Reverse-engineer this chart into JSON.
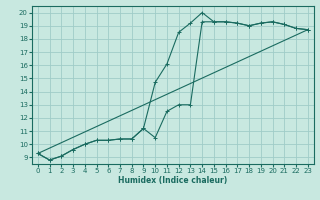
{
  "xlabel": "Humidex (Indice chaleur)",
  "background_color": "#c8e8e0",
  "grid_color": "#a0ccc8",
  "line_color": "#1a6b60",
  "xlim": [
    -0.5,
    23.5
  ],
  "ylim": [
    8.5,
    20.5
  ],
  "xticks": [
    0,
    1,
    2,
    3,
    4,
    5,
    6,
    7,
    8,
    9,
    10,
    11,
    12,
    13,
    14,
    15,
    16,
    17,
    18,
    19,
    20,
    21,
    22,
    23
  ],
  "yticks": [
    9,
    10,
    11,
    12,
    13,
    14,
    15,
    16,
    17,
    18,
    19,
    20
  ],
  "series1_x": [
    0,
    1,
    2,
    3,
    4,
    5,
    6,
    7,
    8,
    9,
    10,
    11,
    12,
    13,
    14,
    15,
    16,
    17,
    18,
    19,
    20,
    21,
    22,
    23
  ],
  "series1_y": [
    9.3,
    8.8,
    9.1,
    9.6,
    10.0,
    10.3,
    10.3,
    10.4,
    10.4,
    11.2,
    10.5,
    12.5,
    13.0,
    13.0,
    19.3,
    19.3,
    19.3,
    19.2,
    19.0,
    19.2,
    19.3,
    19.1,
    18.8,
    18.7
  ],
  "series2_x": [
    0,
    1,
    2,
    3,
    4,
    5,
    6,
    7,
    8,
    9,
    10,
    11,
    12,
    13,
    14,
    15,
    16,
    17,
    18,
    19,
    20,
    21,
    22,
    23
  ],
  "series2_y": [
    9.3,
    8.8,
    9.1,
    9.6,
    10.0,
    10.3,
    10.3,
    10.4,
    10.4,
    11.2,
    14.7,
    16.1,
    18.5,
    19.2,
    20.0,
    19.3,
    19.3,
    19.2,
    19.0,
    19.2,
    19.3,
    19.1,
    18.8,
    18.7
  ],
  "series3_x": [
    0,
    23
  ],
  "series3_y": [
    9.3,
    18.7
  ]
}
